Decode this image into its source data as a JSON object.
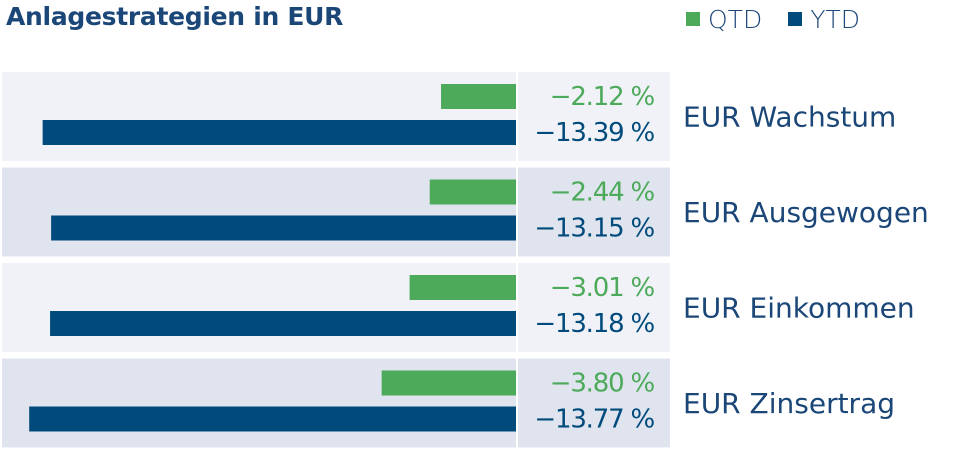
{
  "chart_data": {
    "type": "bar",
    "orientation": "horizontal",
    "title": "Anlagestrategien in EUR",
    "categories": [
      "EUR Wachstum",
      "EUR Ausgewogen",
      "EUR Einkommen",
      "EUR Zinsertrag"
    ],
    "series": [
      {
        "name": "QTD",
        "color": "#4caa5a",
        "values": [
          -2.12,
          -2.44,
          -3.01,
          -3.8
        ],
        "labels": [
          "−2.12 %",
          "−2.44 %",
          "−3.01 %",
          "−3.80 %"
        ]
      },
      {
        "name": "YTD",
        "color": "#004b7c",
        "values": [
          -13.39,
          -13.15,
          -13.18,
          -13.77
        ],
        "labels": [
          "−13.39 %",
          "−13.15 %",
          "−13.18 %",
          "−13.77 %"
        ]
      }
    ],
    "xlim": [
      -14.2,
      0
    ],
    "legend_position": "top-right",
    "row_colors": [
      "#f0f2f7",
      "#dfe4ee"
    ]
  }
}
